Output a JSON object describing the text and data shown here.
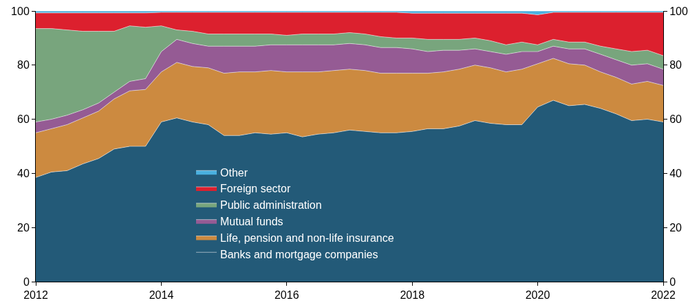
{
  "chart_data": {
    "type": "area",
    "stacked": true,
    "x": [
      "2012-01",
      "2012-04",
      "2012-07",
      "2012-10",
      "2013-01",
      "2013-04",
      "2013-07",
      "2013-10",
      "2014-01",
      "2014-04",
      "2014-07",
      "2014-10",
      "2015-01",
      "2015-04",
      "2015-07",
      "2015-10",
      "2016-01",
      "2016-04",
      "2016-07",
      "2016-10",
      "2017-01",
      "2017-04",
      "2017-07",
      "2017-10",
      "2018-01",
      "2018-04",
      "2018-07",
      "2018-10",
      "2019-01",
      "2019-04",
      "2019-07",
      "2019-10",
      "2020-01",
      "2020-04",
      "2020-07",
      "2020-10",
      "2021-01",
      "2021-04",
      "2021-07",
      "2021-10",
      "2022-01"
    ],
    "series": [
      {
        "name": "Banks and mortgage companies",
        "color": "#235a78",
        "values": [
          38.5,
          40.5,
          41,
          43.5,
          45.5,
          49,
          50,
          50,
          59,
          60.5,
          59,
          58,
          54,
          54,
          55,
          54.5,
          55,
          53.5,
          54.5,
          55,
          56,
          55.5,
          55,
          55,
          55.5,
          56.5,
          56.5,
          57.5,
          59.5,
          58.5,
          58,
          58,
          64.5,
          67,
          65,
          65.5,
          64,
          62,
          59.5,
          60,
          59
        ]
      },
      {
        "name": "Life, pension and non-life insurance",
        "color": "#cc8a40",
        "values": [
          16.5,
          16,
          17,
          17,
          17.5,
          18.5,
          20.5,
          21,
          18.5,
          20.5,
          20.5,
          21,
          23,
          23.5,
          22.5,
          23.5,
          22.5,
          24,
          23,
          23,
          22.5,
          22.5,
          22,
          22,
          21.5,
          20.5,
          21,
          21,
          20.5,
          20.5,
          19.5,
          20.5,
          16,
          15.5,
          15.5,
          14.5,
          13.5,
          13.5,
          13.5,
          14,
          13.5
        ]
      },
      {
        "name": "Mutual funds",
        "color": "#955b94",
        "values": [
          4,
          3.5,
          3.5,
          3,
          3,
          2.5,
          3.5,
          4,
          7.5,
          8.5,
          8.5,
          8,
          10,
          9.5,
          9.5,
          9.5,
          10,
          10,
          10,
          9.5,
          9.5,
          9.5,
          9.5,
          9.5,
          9,
          8,
          8,
          7,
          6,
          6,
          6.5,
          6.5,
          4.5,
          4.5,
          5.5,
          6,
          6.5,
          6.5,
          7,
          6.5,
          6
        ]
      },
      {
        "name": "Public administration",
        "color": "#78a57d",
        "values": [
          34.5,
          33.5,
          31.5,
          29,
          26.5,
          22.5,
          20.5,
          19,
          9.5,
          3.5,
          4.5,
          4.5,
          4.5,
          4.5,
          4.5,
          4,
          3.5,
          4,
          4,
          4,
          4,
          4,
          4,
          3.5,
          4,
          4.5,
          4,
          4,
          4,
          4,
          3.5,
          3.5,
          2.5,
          2.5,
          2.5,
          2.5,
          3,
          4,
          5,
          5,
          5
        ]
      },
      {
        "name": "Foreign sector",
        "color": "#dc202e",
        "values": [
          5.8,
          5.8,
          6.3,
          6.8,
          6.8,
          6.8,
          4.8,
          5.3,
          5,
          6.5,
          7,
          8,
          8,
          8,
          8,
          8,
          8.5,
          8,
          8,
          8,
          7.5,
          8,
          9,
          9.5,
          9.2,
          9.7,
          9.7,
          9.7,
          9.2,
          10.2,
          11.7,
          10.7,
          11.1,
          10,
          11,
          11,
          12.5,
          13.5,
          14.5,
          14,
          16
        ]
      },
      {
        "name": "Other",
        "color": "#49b0df",
        "values": [
          0.7,
          0.7,
          0.7,
          0.7,
          0.7,
          0.7,
          0.7,
          0.7,
          0.5,
          0.5,
          0.5,
          0.5,
          0.5,
          0.5,
          0.5,
          0.5,
          0.5,
          0.5,
          0.5,
          0.5,
          0.5,
          0.5,
          0.5,
          0.5,
          0.8,
          0.8,
          0.8,
          0.8,
          0.8,
          0.8,
          0.8,
          0.8,
          1.4,
          0.5,
          0.5,
          0.5,
          0.5,
          0.5,
          0.5,
          0.5,
          0.5
        ]
      }
    ],
    "xlim": [
      "2012-01-01",
      "2022-01-01"
    ],
    "xticks": [
      "2012",
      "2014",
      "2016",
      "2018",
      "2020",
      "2022"
    ],
    "ylim": [
      0,
      100
    ],
    "yticks": [
      0,
      20,
      40,
      60,
      80,
      100
    ],
    "y2lim": [
      0,
      100
    ],
    "y2ticks": [
      0,
      20,
      40,
      60,
      80,
      100
    ],
    "legend": "bottom left"
  }
}
